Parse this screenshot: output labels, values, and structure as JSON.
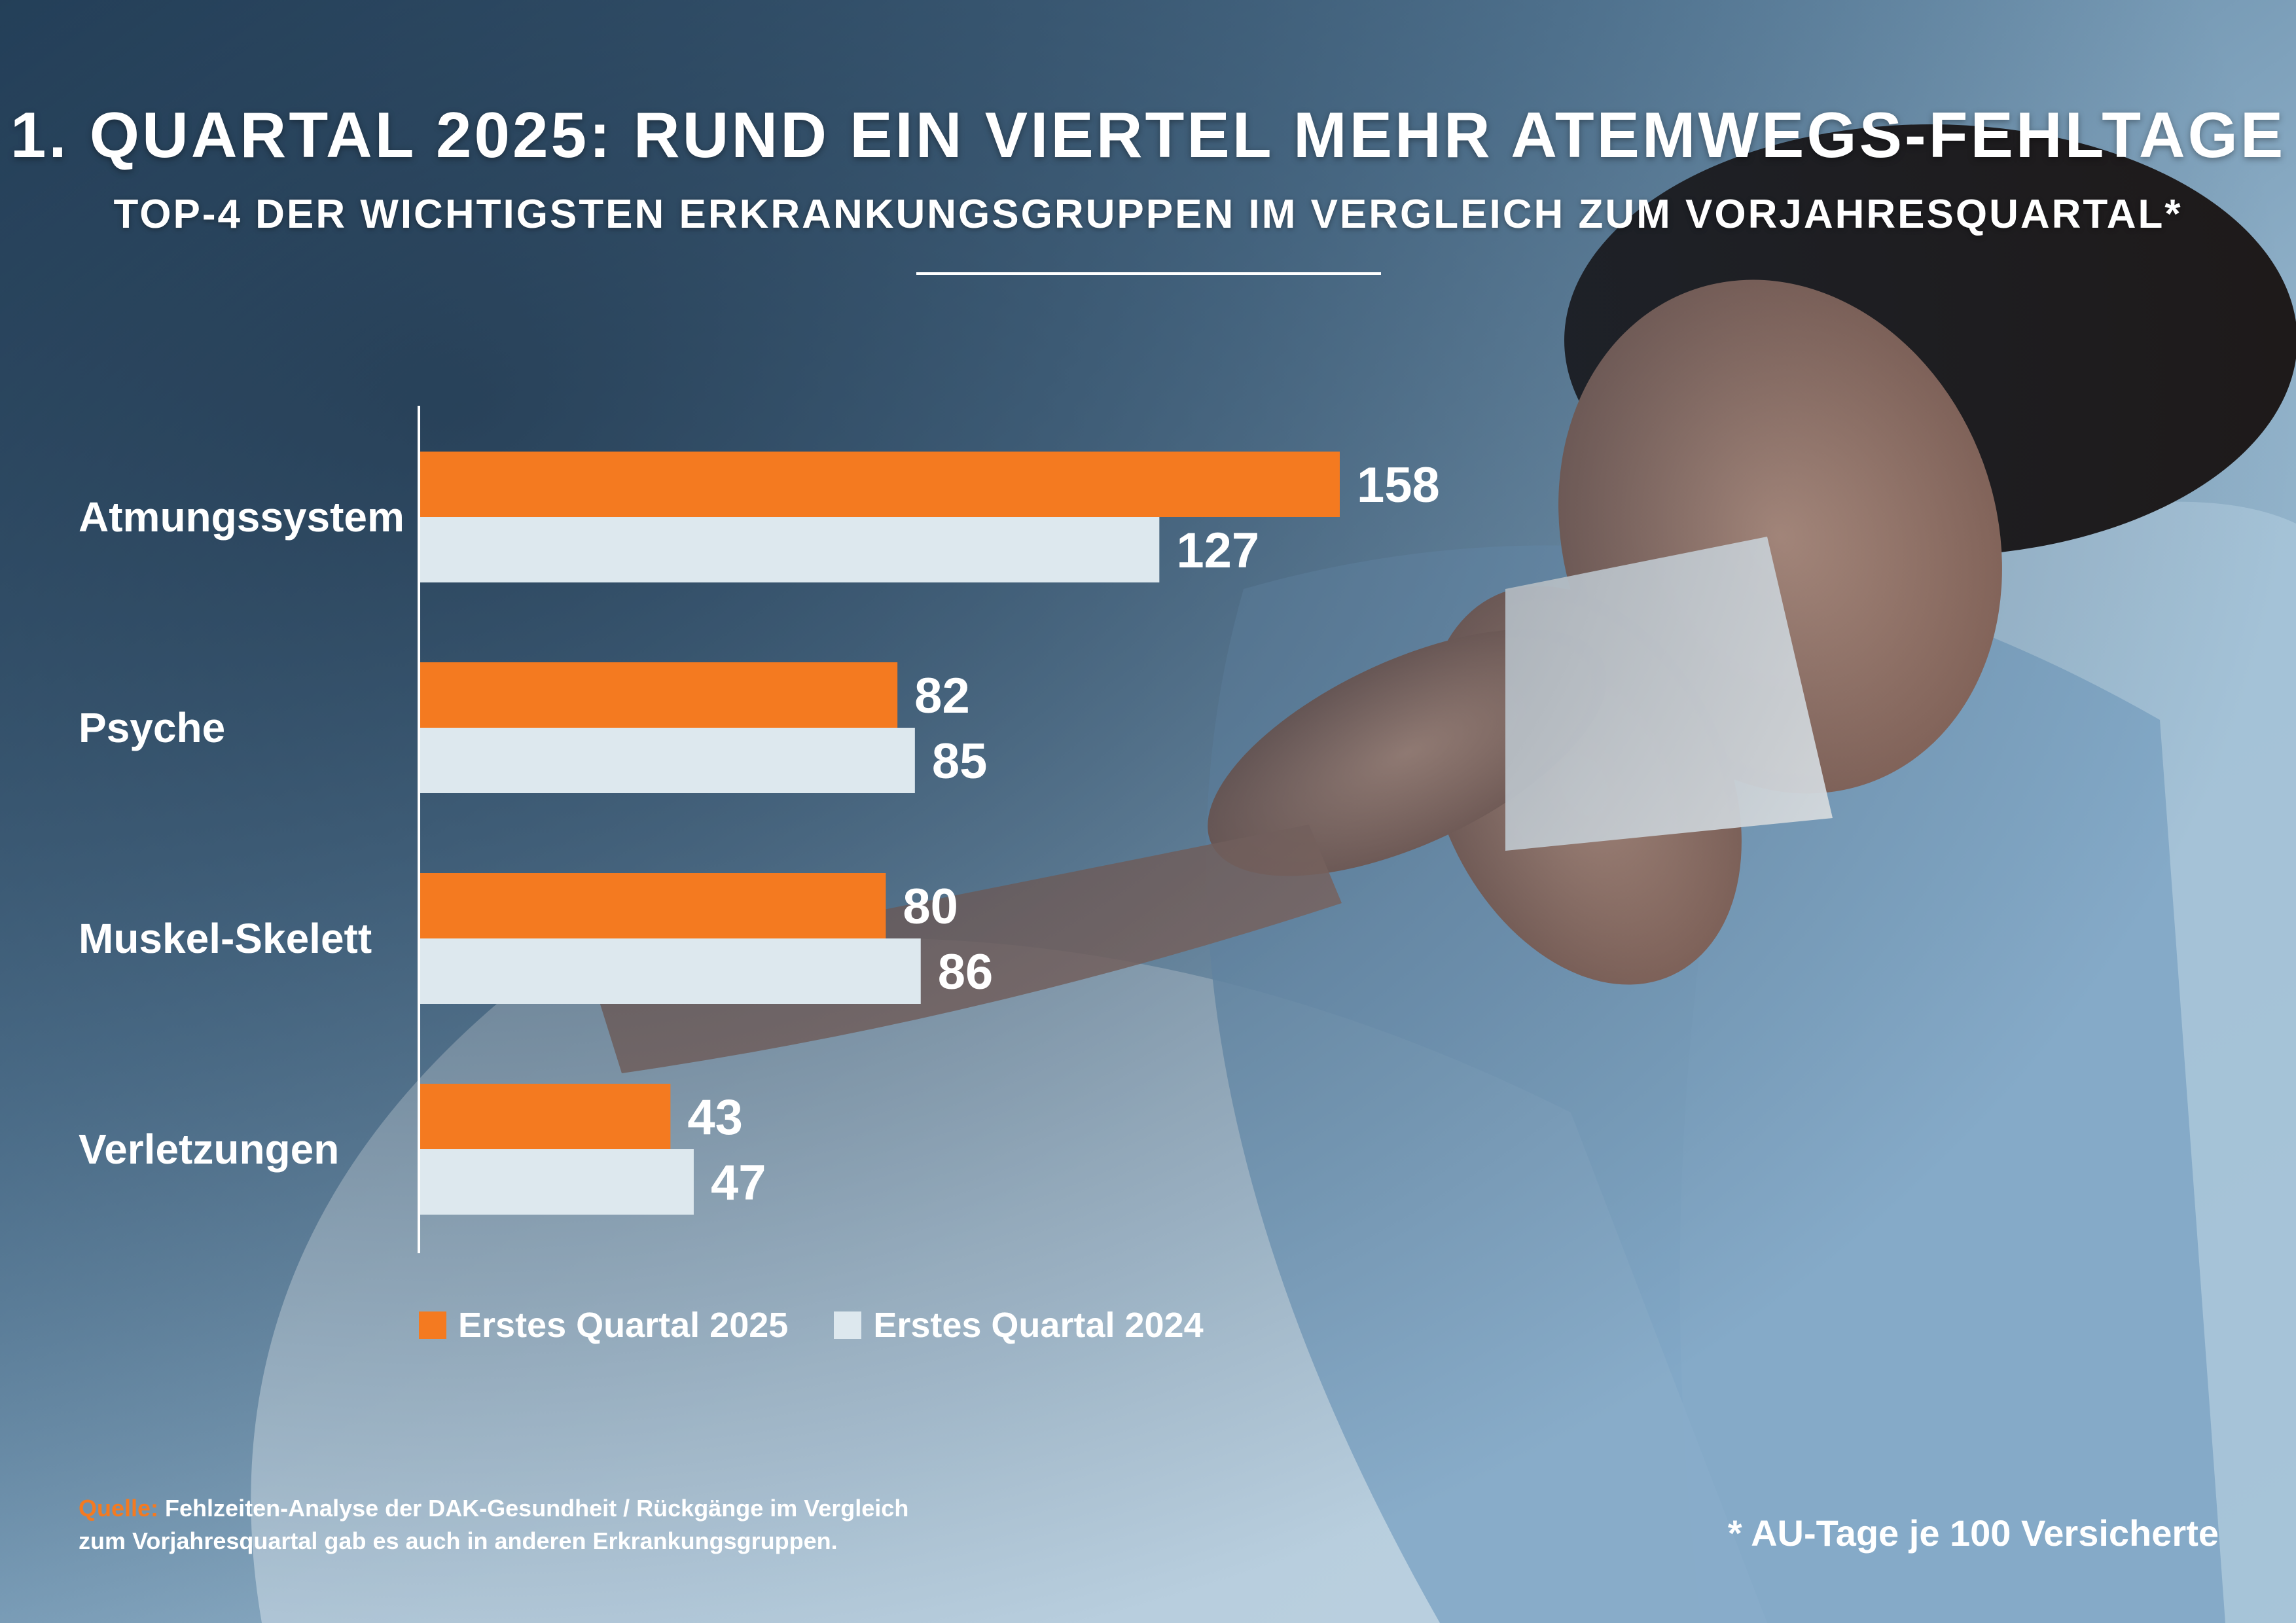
{
  "title": "1. QUARTAL 2025: RUND EIN VIERTEL MEHR ATEMWEGS-FEHLTAGE",
  "subtitle": "TOP-4 DER WICHTIGSTEN ERKRANKUNGSGRUPPEN IM VERGLEICH ZUM VORJAHRESQUARTAL*",
  "colors": {
    "series_2025": "#f47a20",
    "series_2024": "#dde8ee",
    "background_dark": "#1f3a52",
    "background_light": "#8fb0c8"
  },
  "chart_data": {
    "type": "bar",
    "orientation": "horizontal",
    "categories": [
      "Atmungssystem",
      "Psyche",
      "Muskel-Skelett",
      "Verletzungen"
    ],
    "series": [
      {
        "name": "Erstes Quartal 2025",
        "values": [
          158,
          82,
          80,
          43
        ]
      },
      {
        "name": "Erstes Quartal 2024",
        "values": [
          127,
          85,
          86,
          47
        ]
      }
    ],
    "xlim": [
      0,
      158
    ],
    "grid": false,
    "legend_position": "bottom-left"
  },
  "legend": {
    "item_2025": "Erstes Quartal 2025",
    "item_2024": "Erstes Quartal 2024"
  },
  "source": {
    "label": "Quelle:",
    "text": "Fehlzeiten-Analyse der DAK-Gesundheit / Rückgänge im Vergleich zum Vorjahresquartal gab es auch in anderen Erkrankungsgruppen."
  },
  "footnote": "* AU-Tage je 100 Versicherte"
}
